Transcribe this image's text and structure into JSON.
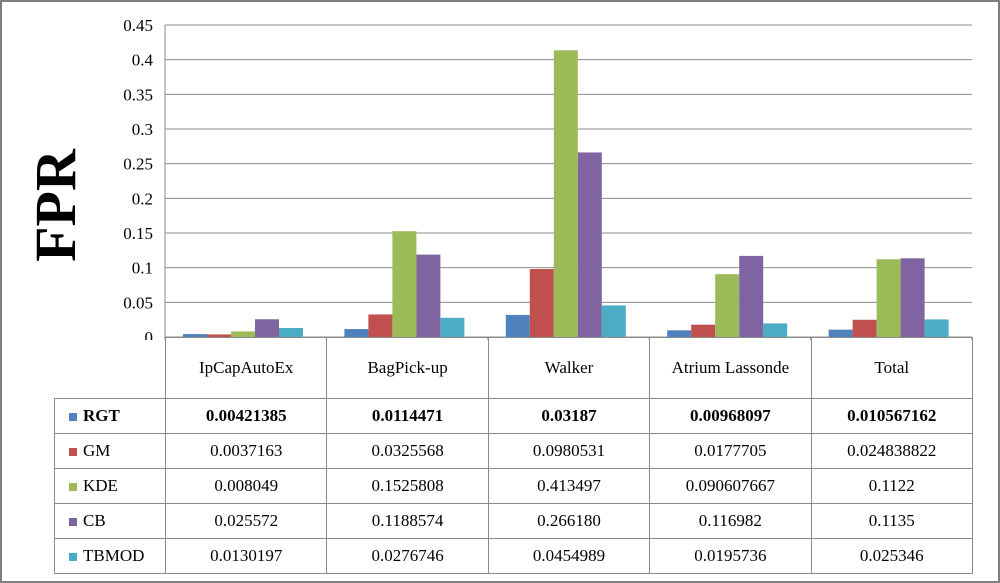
{
  "chart_data": {
    "type": "bar",
    "ylabel": "FPR",
    "ylim": [
      0,
      0.45
    ],
    "yticks": [
      "0",
      "0.05",
      "0.1",
      "0.15",
      "0.2",
      "0.25",
      "0.3",
      "0.35",
      "0.4",
      "0.45"
    ],
    "grid": true,
    "legend_placement": "table rows below chart",
    "categories": [
      "IpCapAutoEx",
      "BagPick-up",
      "Walker",
      "Atrium Lassonde",
      "Total"
    ],
    "series": [
      {
        "name": "RGT",
        "color": "#4f81bd",
        "bold": true,
        "values": [
          0.00421385,
          0.0114471,
          0.03187,
          0.00968097,
          0.010567162
        ],
        "labels": [
          "0.00421385",
          "0.0114471",
          "0.03187",
          "0.00968097",
          "0.010567162"
        ]
      },
      {
        "name": "GM",
        "color": "#c0504d",
        "bold": false,
        "values": [
          0.0037163,
          0.0325568,
          0.0980531,
          0.0177705,
          0.024838822
        ],
        "labels": [
          "0.0037163",
          "0.0325568",
          "0.0980531",
          "0.0177705",
          "0.024838822"
        ]
      },
      {
        "name": "KDE",
        "color": "#9bbb59",
        "bold": false,
        "values": [
          0.008049,
          0.1525808,
          0.413497,
          0.090607667,
          0.1122
        ],
        "labels": [
          "0.008049",
          "0.1525808",
          "0.413497",
          "0.090607667",
          "0.1122"
        ]
      },
      {
        "name": "CB",
        "color": "#8064a2",
        "bold": false,
        "values": [
          0.025572,
          0.1188574,
          0.26618,
          0.116982,
          0.1135
        ],
        "labels": [
          "0.025572",
          "0.1188574",
          "0.266180",
          "0.116982",
          "0.1135"
        ]
      },
      {
        "name": "TBMOD",
        "color": "#4bacc6",
        "bold": false,
        "values": [
          0.0130197,
          0.0276746,
          0.0454989,
          0.0195736,
          0.025346
        ],
        "labels": [
          "0.0130197",
          "0.0276746",
          "0.0454989",
          "0.0195736",
          "0.025346"
        ]
      }
    ]
  }
}
